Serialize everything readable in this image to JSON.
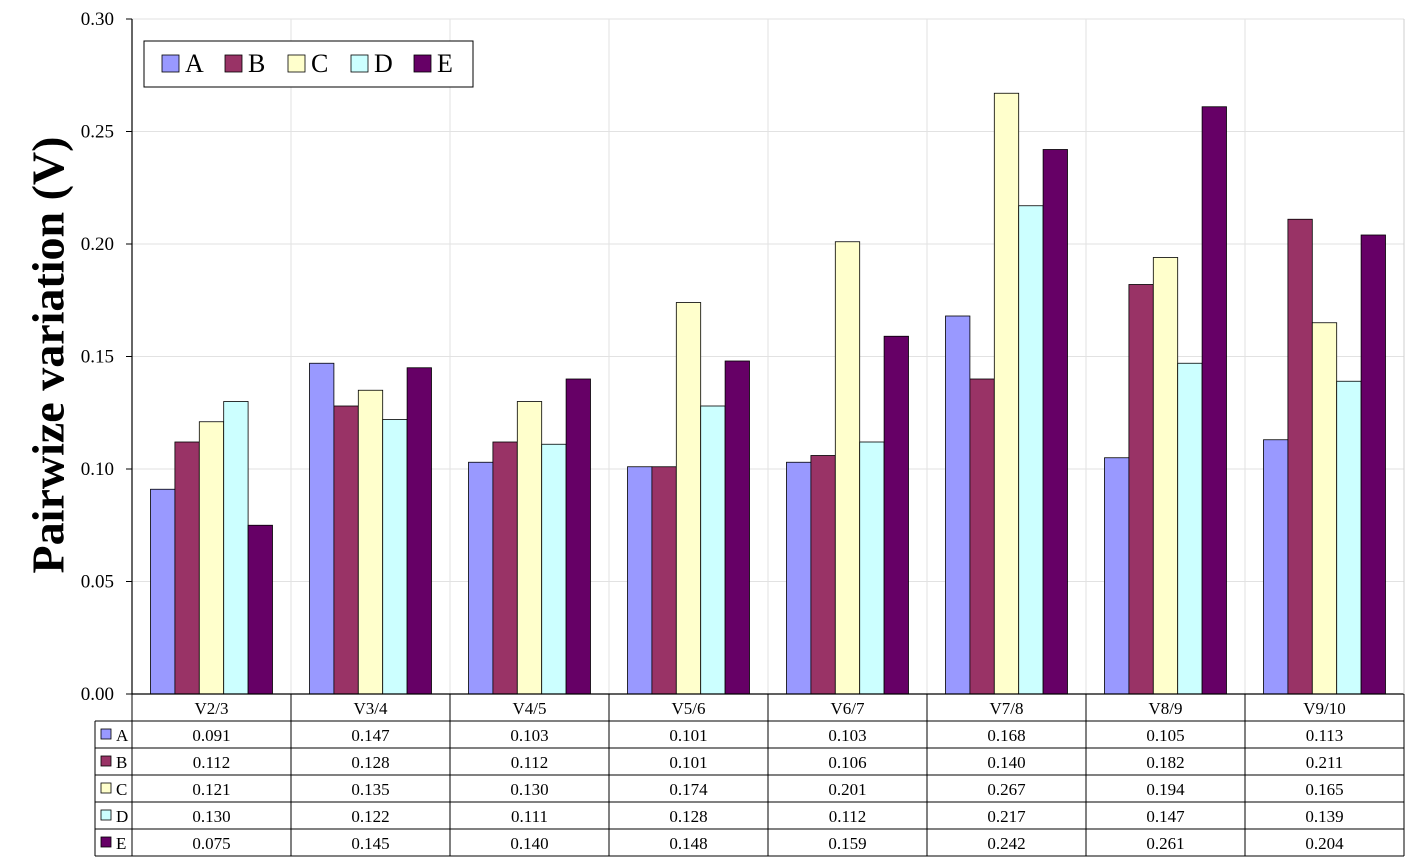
{
  "chart_data": {
    "type": "bar",
    "title": "",
    "xlabel": "",
    "ylabel": "Pairwize variation (V)",
    "ylim": [
      0,
      0.3
    ],
    "yticks": [
      "0.00",
      "0.05",
      "0.10",
      "0.15",
      "0.20",
      "0.25",
      "0.30"
    ],
    "grid": true,
    "legend_position": "top-left",
    "categories": [
      "V2/3",
      "V3/4",
      "V4/5",
      "V5/6",
      "V6/7",
      "V7/8",
      "V8/9",
      "V9/10"
    ],
    "series": [
      {
        "name": "A",
        "color": "#9999ff",
        "values": [
          0.091,
          0.147,
          0.103,
          0.101,
          0.103,
          0.168,
          0.105,
          0.113
        ],
        "labels": [
          "0.091",
          "0.147",
          "0.103",
          "0.101",
          "0.103",
          "0.168",
          "0.105",
          "0.113"
        ]
      },
      {
        "name": "B",
        "color": "#993366",
        "values": [
          0.112,
          0.128,
          0.112,
          0.101,
          0.106,
          0.14,
          0.182,
          0.211
        ],
        "labels": [
          "0.112",
          "0.128",
          "0.112",
          "0.101",
          "0.106",
          "0.140",
          "0.182",
          "0.211"
        ]
      },
      {
        "name": "C",
        "color": "#ffffcc",
        "values": [
          0.121,
          0.135,
          0.13,
          0.174,
          0.201,
          0.267,
          0.194,
          0.165
        ],
        "labels": [
          "0.121",
          "0.135",
          "0.130",
          "0.174",
          "0.201",
          "0.267",
          "0.194",
          "0.165"
        ]
      },
      {
        "name": "D",
        "color": "#ccffff",
        "values": [
          0.13,
          0.122,
          0.111,
          0.128,
          0.112,
          0.217,
          0.147,
          0.139
        ],
        "labels": [
          "0.130",
          "0.122",
          "0.111",
          "0.128",
          "0.112",
          "0.217",
          "0.147",
          "0.139"
        ]
      },
      {
        "name": "E",
        "color": "#660066",
        "values": [
          0.075,
          0.145,
          0.14,
          0.148,
          0.159,
          0.242,
          0.261,
          0.204
        ],
        "labels": [
          "0.075",
          "0.145",
          "0.140",
          "0.148",
          "0.159",
          "0.242",
          "0.261",
          "0.204"
        ]
      }
    ],
    "data_table": true
  }
}
